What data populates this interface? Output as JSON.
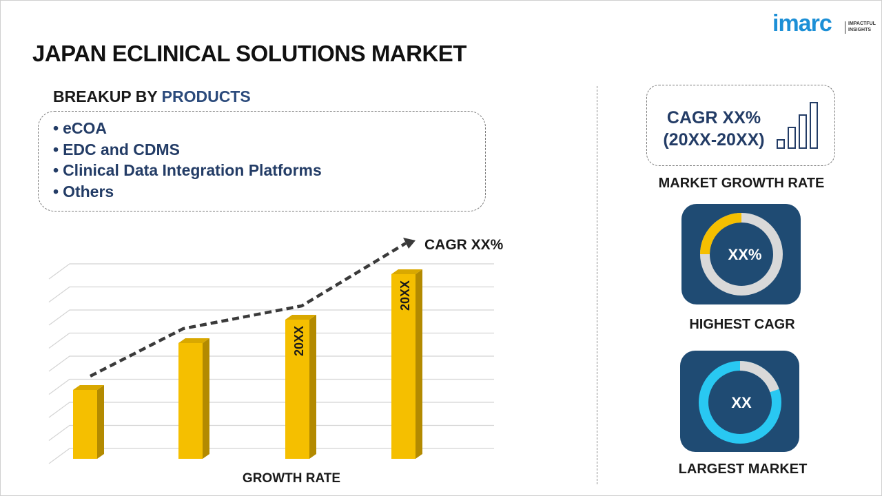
{
  "logo": {
    "name": "imarc",
    "tagline_1": "IMPACTFUL",
    "tagline_2": "INSIGHTS"
  },
  "title": "JAPAN ECLINICAL SOLUTIONS MARKET",
  "breakup": {
    "label": "BREAKUP BY",
    "dimension": "PRODUCTS",
    "items": [
      "eCOA",
      "EDC and CDMS",
      "Clinical Data Integration Platforms",
      "Others"
    ]
  },
  "growth_chart": {
    "cagr_label": "CAGR XX%",
    "bar_label_3": "20XX",
    "bar_label_4": "20XX",
    "axis_label": "GROWTH RATE"
  },
  "kpis": {
    "cagr": "CAGR XX%",
    "period": "(20XX-20XX)",
    "growth_caption": "MARKET GROWTH RATE",
    "highest_value": "XX%",
    "highest_caption": "HIGHEST CAGR",
    "largest_value": "XX",
    "largest_caption": "LARGEST MARKET"
  }
}
